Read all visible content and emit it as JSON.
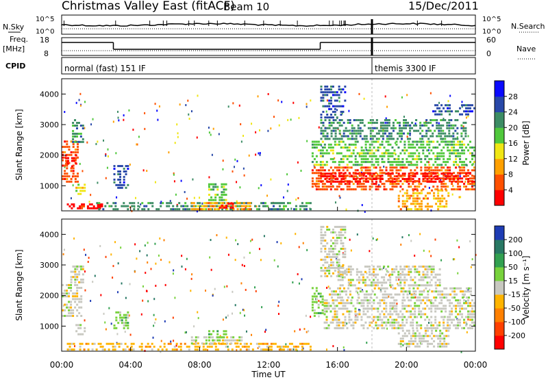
{
  "header": {
    "station": "Christmas Valley East (fitACF)",
    "beam": "Beam 10",
    "date": "15/Dec/2011"
  },
  "top_panels": {
    "nsky_label": "N.Sky",
    "nsky_ticks": [
      "10^5",
      "10^0"
    ],
    "nsearch_label": "N.Search",
    "nsearch_ticks": [
      "10^5",
      "10^0"
    ],
    "freq_label": "Freq.",
    "freq_unit": "[MHz]",
    "freq_ticks": [
      "18",
      "8"
    ],
    "nave_label": "Nave",
    "nave_ticks": [
      "60",
      "0"
    ],
    "cpid_label": "CPID",
    "cpid_segments": [
      {
        "label": "normal (fast) 151 IF",
        "start": 0.0,
        "end": 18.0
      },
      {
        "label": "themis 3300 IF",
        "start": 18.0,
        "end": 24.0
      }
    ],
    "freq_steps": [
      {
        "start": 0.0,
        "end": 3.0,
        "level": "high"
      },
      {
        "start": 3.0,
        "end": 15.0,
        "level": "low"
      },
      {
        "start": 15.0,
        "end": 24.0,
        "level": "high"
      }
    ]
  },
  "chart_data": [
    {
      "type": "heatmap",
      "name": "Power",
      "ylabel": "Slant Range [km]",
      "xlabel": "Time UT",
      "ylim": [
        180,
        4500
      ],
      "xlim": [
        0,
        24
      ],
      "x_ticks": [
        "00:00",
        "04:00",
        "08:00",
        "12:00",
        "16:00",
        "20:00",
        "00:00"
      ],
      "y_ticks": [
        "1000",
        "2000",
        "3000",
        "4000"
      ],
      "colorbar": {
        "label": "Power [dB]",
        "ticks": [
          "4",
          "8",
          "12",
          "16",
          "20",
          "24",
          "28"
        ],
        "colors": [
          "#0a0aff",
          "#2848a8",
          "#3c8c64",
          "#50c83c",
          "#f0e614",
          "#ffa000",
          "#ff5000",
          "#ff0000"
        ]
      },
      "regions": [
        {
          "t0": 0.0,
          "t1": 1.0,
          "r0": 1100,
          "r1": 2500,
          "c": 6
        },
        {
          "t0": 0.2,
          "t1": 0.9,
          "r0": 1600,
          "r1": 2050,
          "c": 7
        },
        {
          "t0": 0.6,
          "t1": 1.3,
          "r0": 2400,
          "r1": 3200,
          "c": 2
        },
        {
          "t0": 0.8,
          "t1": 1.4,
          "r0": 700,
          "r1": 1100,
          "c": 4
        },
        {
          "t0": 0.3,
          "t1": 2.4,
          "r0": 230,
          "r1": 420,
          "c": 7
        },
        {
          "t0": 3.0,
          "t1": 3.9,
          "r0": 900,
          "r1": 1700,
          "c": 1
        },
        {
          "t0": 2.0,
          "t1": 14.5,
          "r0": 200,
          "r1": 500,
          "c": 2
        },
        {
          "t0": 7.5,
          "t1": 11.0,
          "r0": 200,
          "r1": 500,
          "c": 5
        },
        {
          "t0": 8.5,
          "t1": 9.6,
          "r0": 500,
          "r1": 1100,
          "c": 3
        },
        {
          "t0": 9.0,
          "t1": 10.0,
          "r0": 250,
          "r1": 450,
          "c": 7
        },
        {
          "t0": 14.5,
          "t1": 24.0,
          "r0": 850,
          "r1": 1650,
          "c": 6
        },
        {
          "t0": 15.0,
          "t1": 24.0,
          "r0": 1100,
          "r1": 1450,
          "c": 7
        },
        {
          "t0": 14.5,
          "t1": 24.0,
          "r0": 1650,
          "r1": 2500,
          "c": 3
        },
        {
          "t0": 15.0,
          "t1": 23.5,
          "r0": 2500,
          "r1": 3200,
          "c": 2
        },
        {
          "t0": 15.0,
          "t1": 16.5,
          "r0": 3200,
          "r1": 4300,
          "c": 1
        },
        {
          "t0": 19.5,
          "t1": 22.5,
          "r0": 200,
          "r1": 900,
          "c": 5
        },
        {
          "t0": 21.5,
          "t1": 24.0,
          "r0": 3300,
          "r1": 3700,
          "c": 1
        }
      ]
    },
    {
      "type": "heatmap",
      "name": "Velocity",
      "ylabel": "Slant Range [km]",
      "xlabel": "Time UT",
      "ylim": [
        180,
        4500
      ],
      "xlim": [
        0,
        24
      ],
      "x_ticks": [
        "00:00",
        "04:00",
        "08:00",
        "12:00",
        "16:00",
        "20:00",
        "00:00"
      ],
      "y_ticks": [
        "1000",
        "2000",
        "3000",
        "4000"
      ],
      "colorbar": {
        "label": "Velocity [m s⁻¹]",
        "ticks": [
          "200",
          "100",
          "50",
          "15",
          "-15",
          "-50",
          "-100",
          "-200"
        ],
        "colors": [
          "#1e3cb4",
          "#287864",
          "#32a050",
          "#78d23c",
          "#c8c8c0",
          "#ffb400",
          "#ff8000",
          "#ff4000",
          "#ff0000"
        ]
      },
      "regions": [
        {
          "t0": 0.0,
          "t1": 1.2,
          "r0": 1300,
          "r1": 2400,
          "c": 4
        },
        {
          "t0": 0.5,
          "t1": 1.3,
          "r0": 2400,
          "r1": 3000,
          "c": 4
        },
        {
          "t0": 0.8,
          "t1": 1.4,
          "r0": 700,
          "r1": 1100,
          "c": 4
        },
        {
          "t0": 3.0,
          "t1": 3.9,
          "r0": 900,
          "r1": 1500,
          "c": 3
        },
        {
          "t0": 0.3,
          "t1": 14.5,
          "r0": 200,
          "r1": 480,
          "c": 5
        },
        {
          "t0": 7.5,
          "t1": 10.5,
          "r0": 400,
          "r1": 700,
          "c": 4
        },
        {
          "t0": 8.5,
          "t1": 9.6,
          "r0": 500,
          "r1": 900,
          "c": 3
        },
        {
          "t0": 14.5,
          "t1": 15.2,
          "r0": 1300,
          "r1": 2300,
          "c": 3
        },
        {
          "t0": 15.2,
          "t1": 24.0,
          "r0": 900,
          "r1": 1900,
          "c": 4
        },
        {
          "t0": 15.5,
          "t1": 23.8,
          "r0": 1900,
          "r1": 2300,
          "c": 4
        },
        {
          "t0": 16.0,
          "t1": 22.0,
          "r0": 2300,
          "r1": 3000,
          "c": 4
        },
        {
          "t0": 19.5,
          "t1": 22.5,
          "r0": 300,
          "r1": 900,
          "c": 4
        },
        {
          "t0": 15.0,
          "t1": 16.5,
          "r0": 2600,
          "r1": 4300,
          "c": 4
        }
      ]
    }
  ]
}
